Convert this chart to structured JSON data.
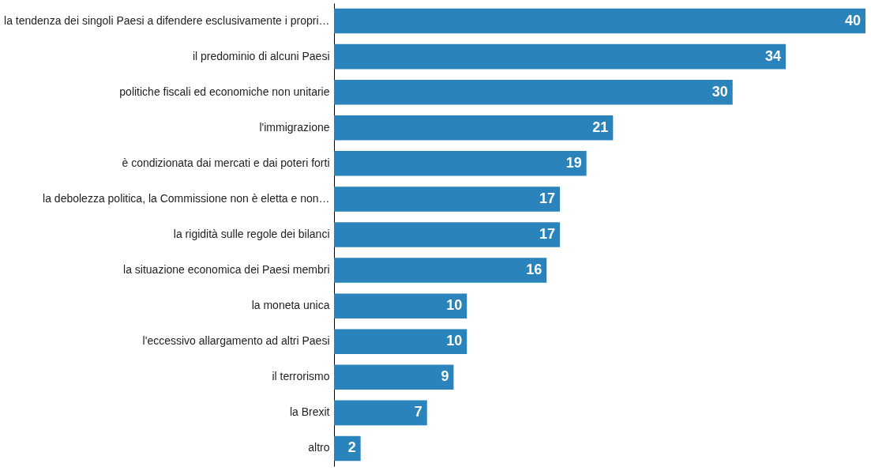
{
  "chart_data": {
    "type": "bar",
    "orientation": "horizontal",
    "data_labels": true,
    "categories": [
      "la tendenza dei singoli Paesi a difendere esclusivamente i propri…",
      "il predominio di alcuni Paesi",
      "politiche fiscali ed economiche non unitarie",
      "l'immigrazione ",
      "è condizionata dai mercati e dai poteri forti",
      "la debolezza politica, la Commissione non è eletta e non…",
      "la rigidità sulle regole dei bilanci ",
      "la situazione economica dei Paesi membri",
      "la moneta unica",
      "l'eccessivo allargamento ad altri Paesi",
      "il terrorismo",
      "la Brexit ",
      "altro"
    ],
    "color": "#2a83ba",
    "values": [
      40,
      34,
      30,
      21,
      19,
      17,
      17,
      16,
      10,
      10,
      9,
      7,
      2
    ]
  }
}
